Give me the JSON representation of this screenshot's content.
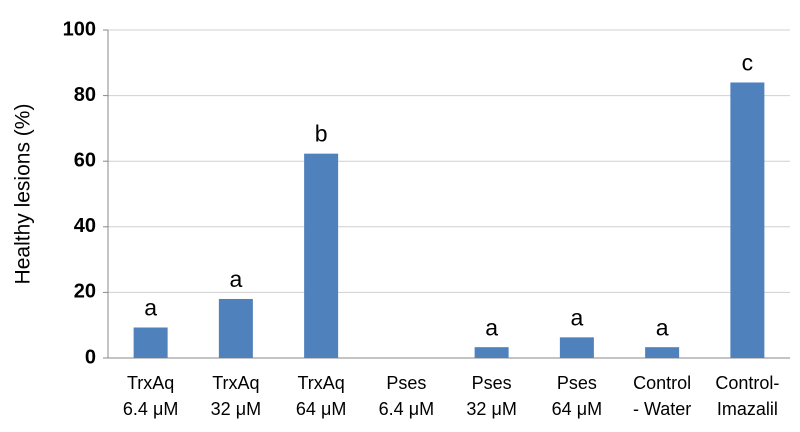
{
  "chart_data": {
    "type": "bar",
    "y_label": "Healthy lesions (%)",
    "categories": [
      [
        "TrxAq",
        "6.4 μM"
      ],
      [
        "TrxAq",
        "32 μM"
      ],
      [
        "TrxAq",
        "64 μM"
      ],
      [
        "Pses",
        "6.4 μM"
      ],
      [
        "Pses",
        "32 μM"
      ],
      [
        "Pses",
        "64 μM"
      ],
      [
        "Control",
        "- Water"
      ],
      [
        "Control-",
        "Imazalil"
      ]
    ],
    "values": [
      9.3,
      18,
      62.3,
      0,
      3.3,
      6.3,
      3.3,
      84
    ],
    "annotations": [
      "a",
      "a",
      "b",
      null,
      "a",
      "a",
      "a",
      "c"
    ],
    "color": "#4f81bd",
    "ylim": [
      0,
      100
    ],
    "yticks": [
      0,
      20,
      40,
      60,
      80,
      100
    ],
    "grid": true
  }
}
